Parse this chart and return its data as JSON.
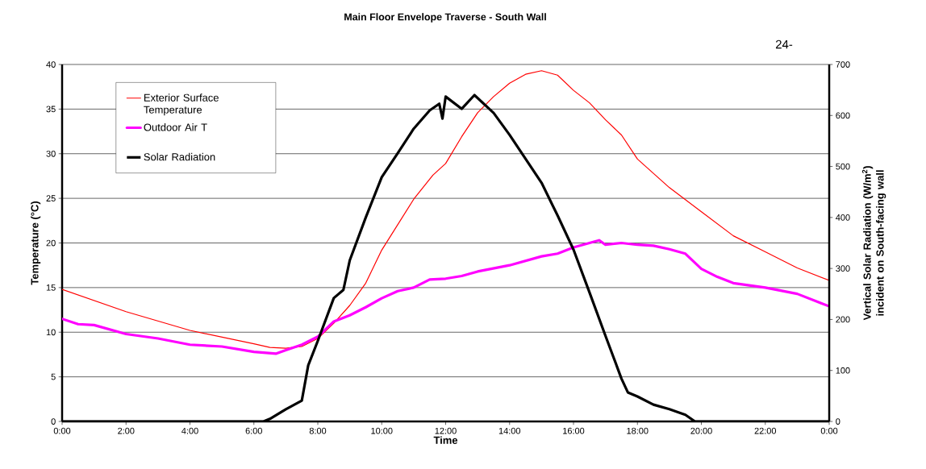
{
  "chart_data": {
    "type": "line",
    "title": "Main Floor Envelope Traverse - South Wall",
    "xlabel": "Time",
    "ylabel": "Temperature (°C)",
    "y2label": "Vertical Solar Radiation (W/m$^{2}$) incident on South-facing wall",
    "annotations": [
      "24-"
    ],
    "xlim": [
      0,
      24
    ],
    "xticks": [
      {
        "value": 0,
        "label": "0:00"
      },
      {
        "value": 2,
        "label": "2:00"
      },
      {
        "value": 4,
        "label": "4:00"
      },
      {
        "value": 6,
        "label": "6:00"
      },
      {
        "value": 8,
        "label": "8:00"
      },
      {
        "value": 10,
        "label": "10:00"
      },
      {
        "value": 12,
        "label": "12:00"
      },
      {
        "value": 14,
        "label": "14:00"
      },
      {
        "value": 16,
        "label": "16:00"
      },
      {
        "value": 18,
        "label": "18:00"
      },
      {
        "value": 20,
        "label": "20:00"
      },
      {
        "value": 22,
        "label": "22:00"
      },
      {
        "value": 24,
        "label": "0:00"
      }
    ],
    "ylim": [
      0,
      40
    ],
    "yticks": [
      0,
      5,
      10,
      15,
      20,
      25,
      30,
      35,
      40
    ],
    "y2lim": [
      0,
      700
    ],
    "y2ticks": [
      0,
      100,
      200,
      300,
      400,
      500,
      600,
      700
    ],
    "grid": "y",
    "legend": "top left",
    "marker": "none",
    "line_style": "solid",
    "series": [
      {
        "name": "Exterior Surface Temperature",
        "color": "#ff0000",
        "x": [
          0,
          2,
          4,
          6,
          6.5,
          7,
          7.5,
          8,
          8.5,
          9,
          9.5,
          10,
          11,
          11.6,
          12,
          12.5,
          13,
          13.5,
          14,
          14.5,
          15,
          15.5,
          16,
          16.5,
          17,
          17.5,
          18,
          19,
          20,
          21,
          22,
          23,
          24
        ],
        "values": [
          14.8,
          12.3,
          10.2,
          8.7,
          8.3,
          8.2,
          8.4,
          9.3,
          11.0,
          13.0,
          15.5,
          19.2,
          24.9,
          27.6,
          28.9,
          31.9,
          34.6,
          36.4,
          37.9,
          38.9,
          39.3,
          38.8,
          37.1,
          35.7,
          33.8,
          32.1,
          29.4,
          26.2,
          23.5,
          20.8,
          19.0,
          17.2,
          15.8
        ]
      },
      {
        "name": "Outdoor Air T",
        "color": "#ff00ff",
        "x": [
          0,
          0.5,
          1,
          2,
          3,
          4,
          5,
          6,
          6.7,
          7,
          7.5,
          8,
          8.5,
          9,
          9.5,
          10,
          10.5,
          11,
          11.5,
          12,
          12.5,
          13,
          14,
          15,
          15.5,
          16,
          16.5,
          16.8,
          17,
          17.5,
          18,
          18.5,
          19,
          19.5,
          20,
          20.5,
          21,
          22,
          23,
          24
        ],
        "values": [
          11.5,
          10.9,
          10.8,
          9.8,
          9.3,
          8.6,
          8.4,
          7.8,
          7.6,
          8.0,
          8.6,
          9.5,
          11.2,
          11.9,
          12.8,
          13.8,
          14.6,
          15.0,
          15.9,
          16.0,
          16.3,
          16.8,
          17.5,
          18.5,
          18.8,
          19.5,
          20.0,
          20.3,
          19.8,
          20.0,
          19.8,
          19.7,
          19.3,
          18.8,
          17.1,
          16.2,
          15.5,
          15.0,
          14.3,
          12.9
        ]
      },
      {
        "name": "Solar Radiation",
        "color": "#000000",
        "axis": "y2",
        "x": [
          0,
          6.3,
          6.5,
          7,
          7.5,
          7.7,
          8,
          8.5,
          8.8,
          9,
          9.5,
          10,
          10.5,
          11,
          11.5,
          11.8,
          11.9,
          12,
          12.5,
          12.9,
          13.5,
          14,
          14.5,
          15,
          15.5,
          16,
          16.5,
          17,
          17.5,
          17.7,
          18,
          18.5,
          19,
          19.5,
          19.8,
          24
        ],
        "values": [
          0,
          0,
          5,
          24,
          41,
          110,
          158,
          242,
          258,
          316,
          400,
          479,
          526,
          574,
          610,
          623,
          594,
          637,
          613,
          640,
          605,
          562,
          515,
          468,
          404,
          337,
          253,
          168,
          84,
          57,
          49,
          33,
          24,
          13,
          0,
          0
        ]
      }
    ]
  }
}
